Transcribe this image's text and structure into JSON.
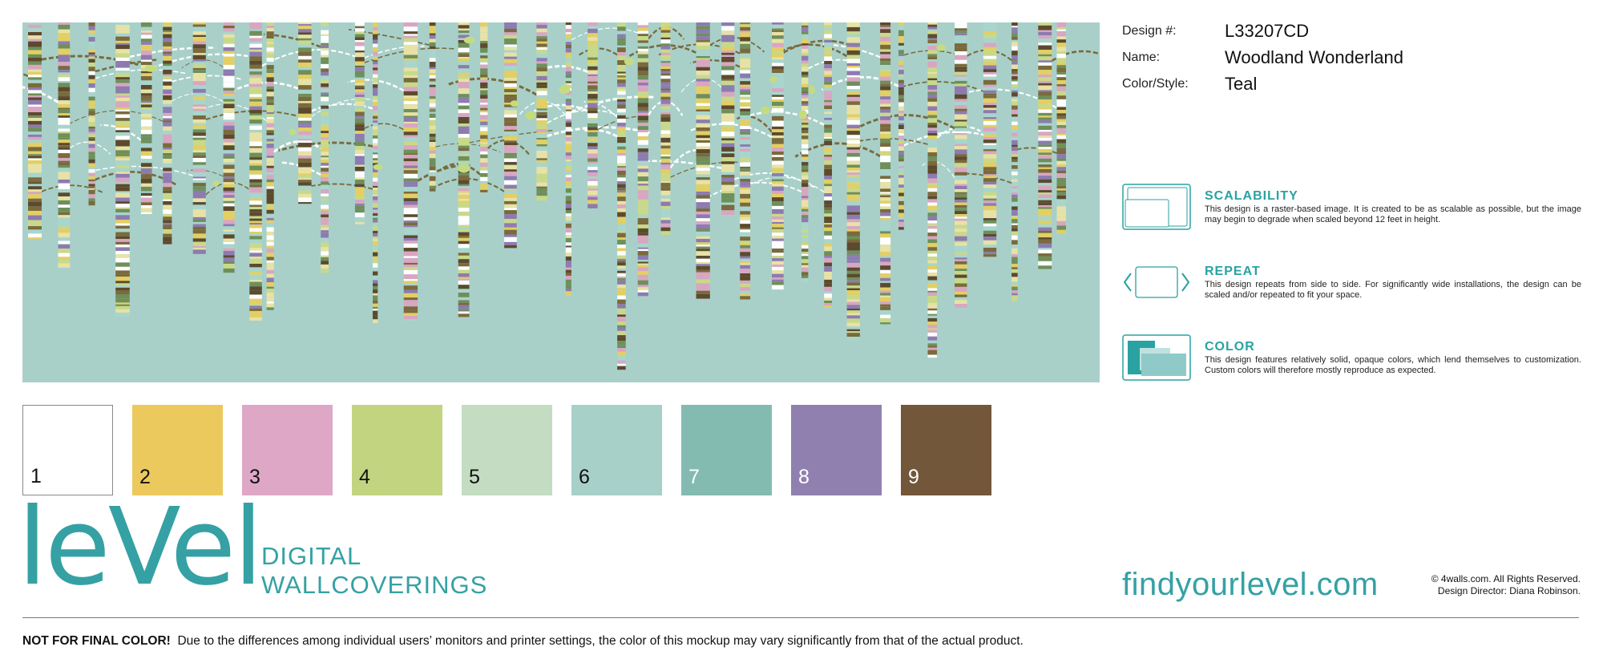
{
  "design": {
    "fields": [
      {
        "label": "Design #:",
        "value": "L33207CD"
      },
      {
        "label": "Name:",
        "value": "Woodland Wonderland"
      },
      {
        "label": "Color/Style:",
        "value": "Teal"
      }
    ]
  },
  "features": [
    {
      "icon": "scalability-icon",
      "title": "SCALABILITY",
      "text": "This design is a raster-based image. It is created to be as scalable as possible, but the image may begin to degrade when scaled beyond 12 feet in height."
    },
    {
      "icon": "repeat-icon",
      "title": "REPEAT",
      "text": "This design repeats from side to side. For significantly wide installations, the design can be scaled and/or repeated to fit your space."
    },
    {
      "icon": "color-icon",
      "title": "COLOR",
      "text": "This design features relatively solid, opaque colors, which lend themselves to customization. Custom colors will therefore mostly reproduce as expected."
    }
  ],
  "swatches": [
    {
      "number": "1",
      "color": "#ffffff"
    },
    {
      "number": "2",
      "color": "#ecc95d"
    },
    {
      "number": "3",
      "color": "#dea7c5"
    },
    {
      "number": "4",
      "color": "#c2d480"
    },
    {
      "number": "5",
      "color": "#c3dcc2"
    },
    {
      "number": "6",
      "color": "#a7d0c9"
    },
    {
      "number": "7",
      "color": "#84bbb1"
    },
    {
      "number": "8",
      "color": "#9080b0"
    },
    {
      "number": "9",
      "color": "#73573a"
    }
  ],
  "brand": {
    "logo": "leVel",
    "line1": "DIGITAL",
    "line2": "WALLCOVERINGS",
    "website": "findyourlevel.com",
    "copyright": "© 4walls.com. All Rights Reserved.",
    "director": "Design Director: Diana Robinson.",
    "accent_color": "#35a1a4"
  },
  "disclaimer": {
    "bold": "NOT FOR FINAL COLOR!",
    "text": "Due to the differences among individual users’ monitors and printer settings, the color of this mockup may vary significantly from that of the actual product."
  },
  "mural": {
    "background_color": "#a8d0c9",
    "stripe_colors": [
      "#7a6a3c",
      "#e3cf63",
      "#c9d98a",
      "#d9a6c1",
      "#ffffff",
      "#8d7bb0",
      "#5c4a2e",
      "#a8d5cc",
      "#e8e2a6",
      "#6e8f5a"
    ],
    "leaf_color": "#c5dc7e"
  }
}
